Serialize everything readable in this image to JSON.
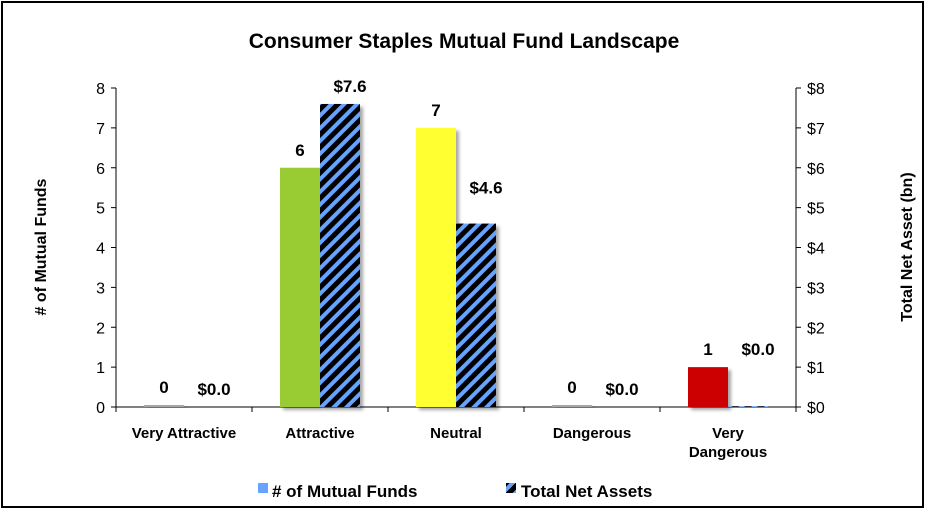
{
  "chart_data": {
    "type": "bar",
    "title": "Consumer Staples Mutual Fund Landscape",
    "categories": [
      "Very Attractive",
      "Attractive",
      "Neutral",
      "Dangerous",
      "Very Dangerous"
    ],
    "category_lines": [
      [
        "Very Attractive"
      ],
      [
        "Attractive"
      ],
      [
        "Neutral"
      ],
      [
        "Dangerous"
      ],
      [
        "Very",
        "Dangerous"
      ]
    ],
    "ylabel": "# of Mutual Funds",
    "y2label": "Total Net Asset (bn)",
    "ylim": [
      0,
      8
    ],
    "y2lim": [
      0,
      8
    ],
    "yticks": [
      "0",
      "1",
      "2",
      "3",
      "4",
      "5",
      "6",
      "7",
      "8"
    ],
    "y2ticks": [
      "$0",
      "$1",
      "$2",
      "$3",
      "$4",
      "$5",
      "$6",
      "$7",
      "$8"
    ],
    "grid": false,
    "legend_position": "bottom",
    "series": [
      {
        "name": "# of Mutual Funds",
        "axis": "left",
        "values": [
          0,
          6,
          7,
          0,
          1
        ],
        "labels": [
          "0",
          "6",
          "7",
          "0",
          "1"
        ],
        "colors": [
          "#a6a6a6",
          "#99cc33",
          "#ffff33",
          "#a6a6a6",
          "#cc0000"
        ],
        "legend_color": "#66a3ff"
      },
      {
        "name": "Total Net Assets",
        "axis": "right",
        "values": [
          0.0,
          7.6,
          4.6,
          0.0,
          0.02
        ],
        "labels": [
          "$0.0",
          "$7.6",
          "$4.6",
          "$0.0",
          "$0.0"
        ],
        "fill": "hatched",
        "colors": [
          "#000000",
          "#66a3ff"
        ]
      }
    ]
  }
}
